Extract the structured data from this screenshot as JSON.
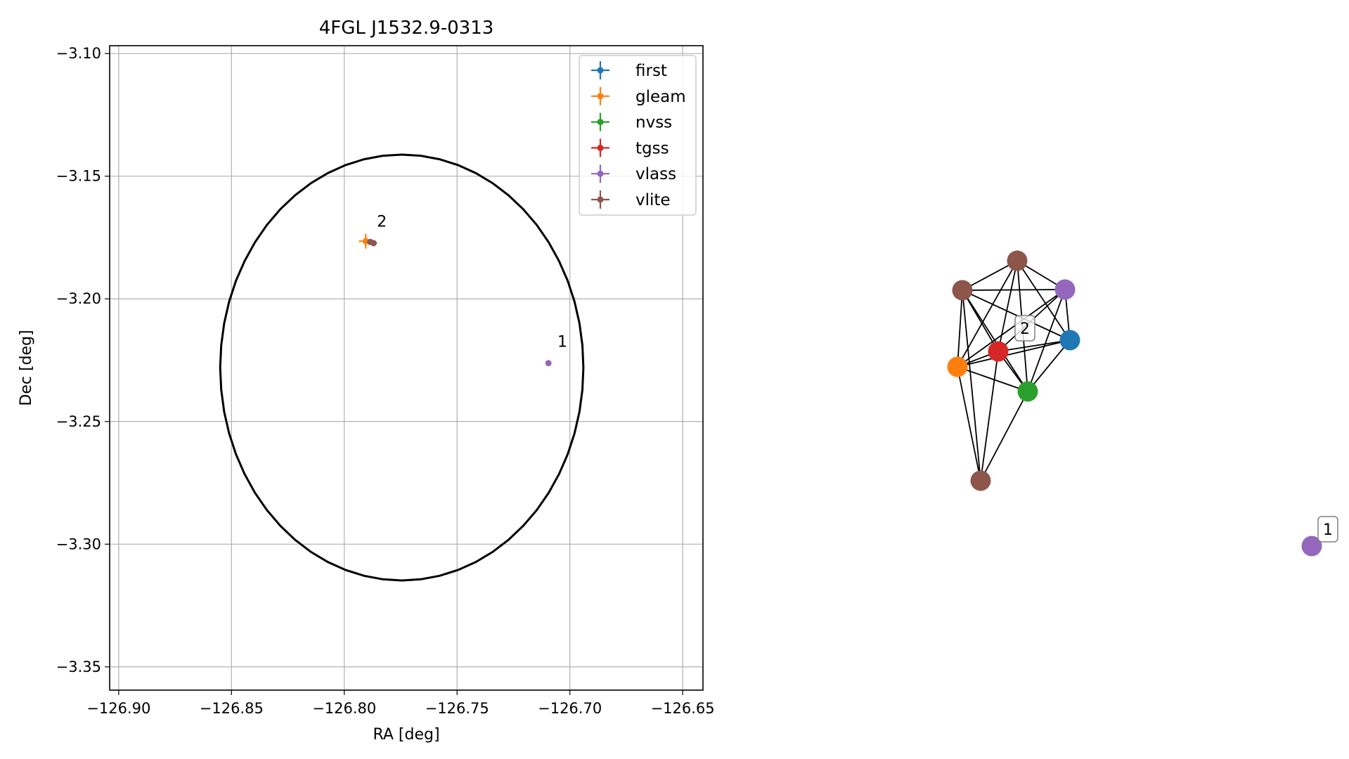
{
  "chart_data": [
    {
      "type": "scatter",
      "title": "4FGL J1532.9-0313",
      "xlabel": "RA [deg]",
      "ylabel": "Dec [deg]",
      "xlim": [
        -126.904,
        -126.641
      ],
      "ylim": [
        -3.3595,
        -3.0968
      ],
      "xticks": [
        -126.9,
        -126.85,
        -126.8,
        -126.75,
        -126.7,
        -126.65
      ],
      "xtick_labels": [
        "−126.90",
        "−126.85",
        "−126.80",
        "−126.75",
        "−126.70",
        "−126.65"
      ],
      "yticks": [
        -3.1,
        -3.15,
        -3.2,
        -3.25,
        -3.3,
        -3.35
      ],
      "ytick_labels": [
        "−3.10",
        "−3.15",
        "−3.20",
        "−3.25",
        "−3.30",
        "−3.35"
      ],
      "grid": true,
      "legend_position": "top-right",
      "ellipse": {
        "center": [
          -126.7745,
          -3.228
        ],
        "semi_axis_x": 0.0805,
        "semi_axis_y": 0.0868,
        "color": "#000000"
      },
      "series": [
        {
          "name": "first",
          "color": "#1f77b4",
          "points": []
        },
        {
          "name": "gleam",
          "color": "#ff7f0e",
          "points": [
            {
              "x": -126.7905,
              "y": -3.1765,
              "xerr": 0.003,
              "yerr": 0.003
            }
          ]
        },
        {
          "name": "nvss",
          "color": "#2ca02c",
          "points": []
        },
        {
          "name": "tgss",
          "color": "#d62728",
          "points": []
        },
        {
          "name": "vlass",
          "color": "#9467bd",
          "points": [
            {
              "x": -126.7095,
              "y": -3.2262,
              "xerr": 0,
              "yerr": 0
            }
          ]
        },
        {
          "name": "vlite",
          "color": "#8c564b",
          "points": [
            {
              "x": -126.787,
              "y": -3.1773,
              "xerr": 0.0015,
              "yerr": 0
            },
            {
              "x": -126.7885,
              "y": -3.1768,
              "xerr": 0,
              "yerr": 0
            }
          ]
        }
      ],
      "annotations": [
        {
          "text": "2",
          "x": -126.7855,
          "y": -3.1705
        },
        {
          "text": "1",
          "x": -126.7055,
          "y": -3.2195
        }
      ]
    },
    {
      "type": "network",
      "nodes": [
        {
          "id": "n1",
          "color": "#8c564b"
        },
        {
          "id": "n2",
          "color": "#8c564b"
        },
        {
          "id": "n3",
          "color": "#9467bd"
        },
        {
          "id": "n4",
          "color": "#1f77b4"
        },
        {
          "id": "n5",
          "color": "#d62728"
        },
        {
          "id": "n6",
          "color": "#ff7f0e"
        },
        {
          "id": "n7",
          "color": "#2ca02c"
        },
        {
          "id": "n8",
          "color": "#8c564b"
        },
        {
          "id": "n9",
          "color": "#9467bd"
        }
      ],
      "edges": [
        [
          "n1",
          "n2"
        ],
        [
          "n1",
          "n3"
        ],
        [
          "n1",
          "n4"
        ],
        [
          "n1",
          "n5"
        ],
        [
          "n1",
          "n6"
        ],
        [
          "n1",
          "n7"
        ],
        [
          "n2",
          "n3"
        ],
        [
          "n2",
          "n4"
        ],
        [
          "n2",
          "n5"
        ],
        [
          "n2",
          "n6"
        ],
        [
          "n2",
          "n7"
        ],
        [
          "n2",
          "n8"
        ],
        [
          "n3",
          "n4"
        ],
        [
          "n3",
          "n5"
        ],
        [
          "n3",
          "n6"
        ],
        [
          "n3",
          "n7"
        ],
        [
          "n4",
          "n5"
        ],
        [
          "n4",
          "n6"
        ],
        [
          "n4",
          "n7"
        ],
        [
          "n5",
          "n6"
        ],
        [
          "n5",
          "n7"
        ],
        [
          "n5",
          "n8"
        ],
        [
          "n6",
          "n7"
        ],
        [
          "n6",
          "n8"
        ],
        [
          "n7",
          "n8"
        ]
      ],
      "labels": [
        {
          "text": "2",
          "node": "n5"
        },
        {
          "text": "1",
          "node": "n9"
        }
      ]
    }
  ]
}
